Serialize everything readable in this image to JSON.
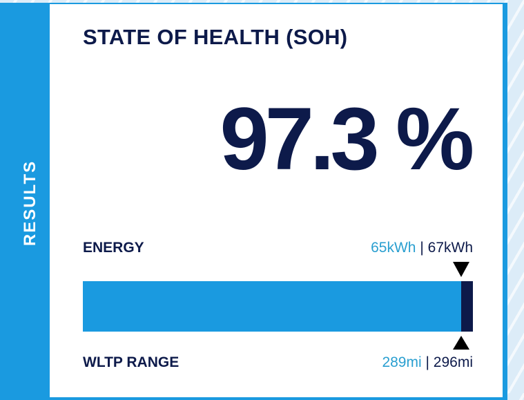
{
  "sidebar": {
    "label": "RESULTS"
  },
  "card": {
    "title": "STATE OF HEALTH (SOH)",
    "soh": "97.3 %",
    "energy": {
      "label": "ENERGY",
      "current": "65kWh",
      "separator": "|",
      "original": "67kWh"
    },
    "range": {
      "label": "WLTP RANGE",
      "current": "289mi",
      "separator": "|",
      "original": "296mi"
    }
  }
}
